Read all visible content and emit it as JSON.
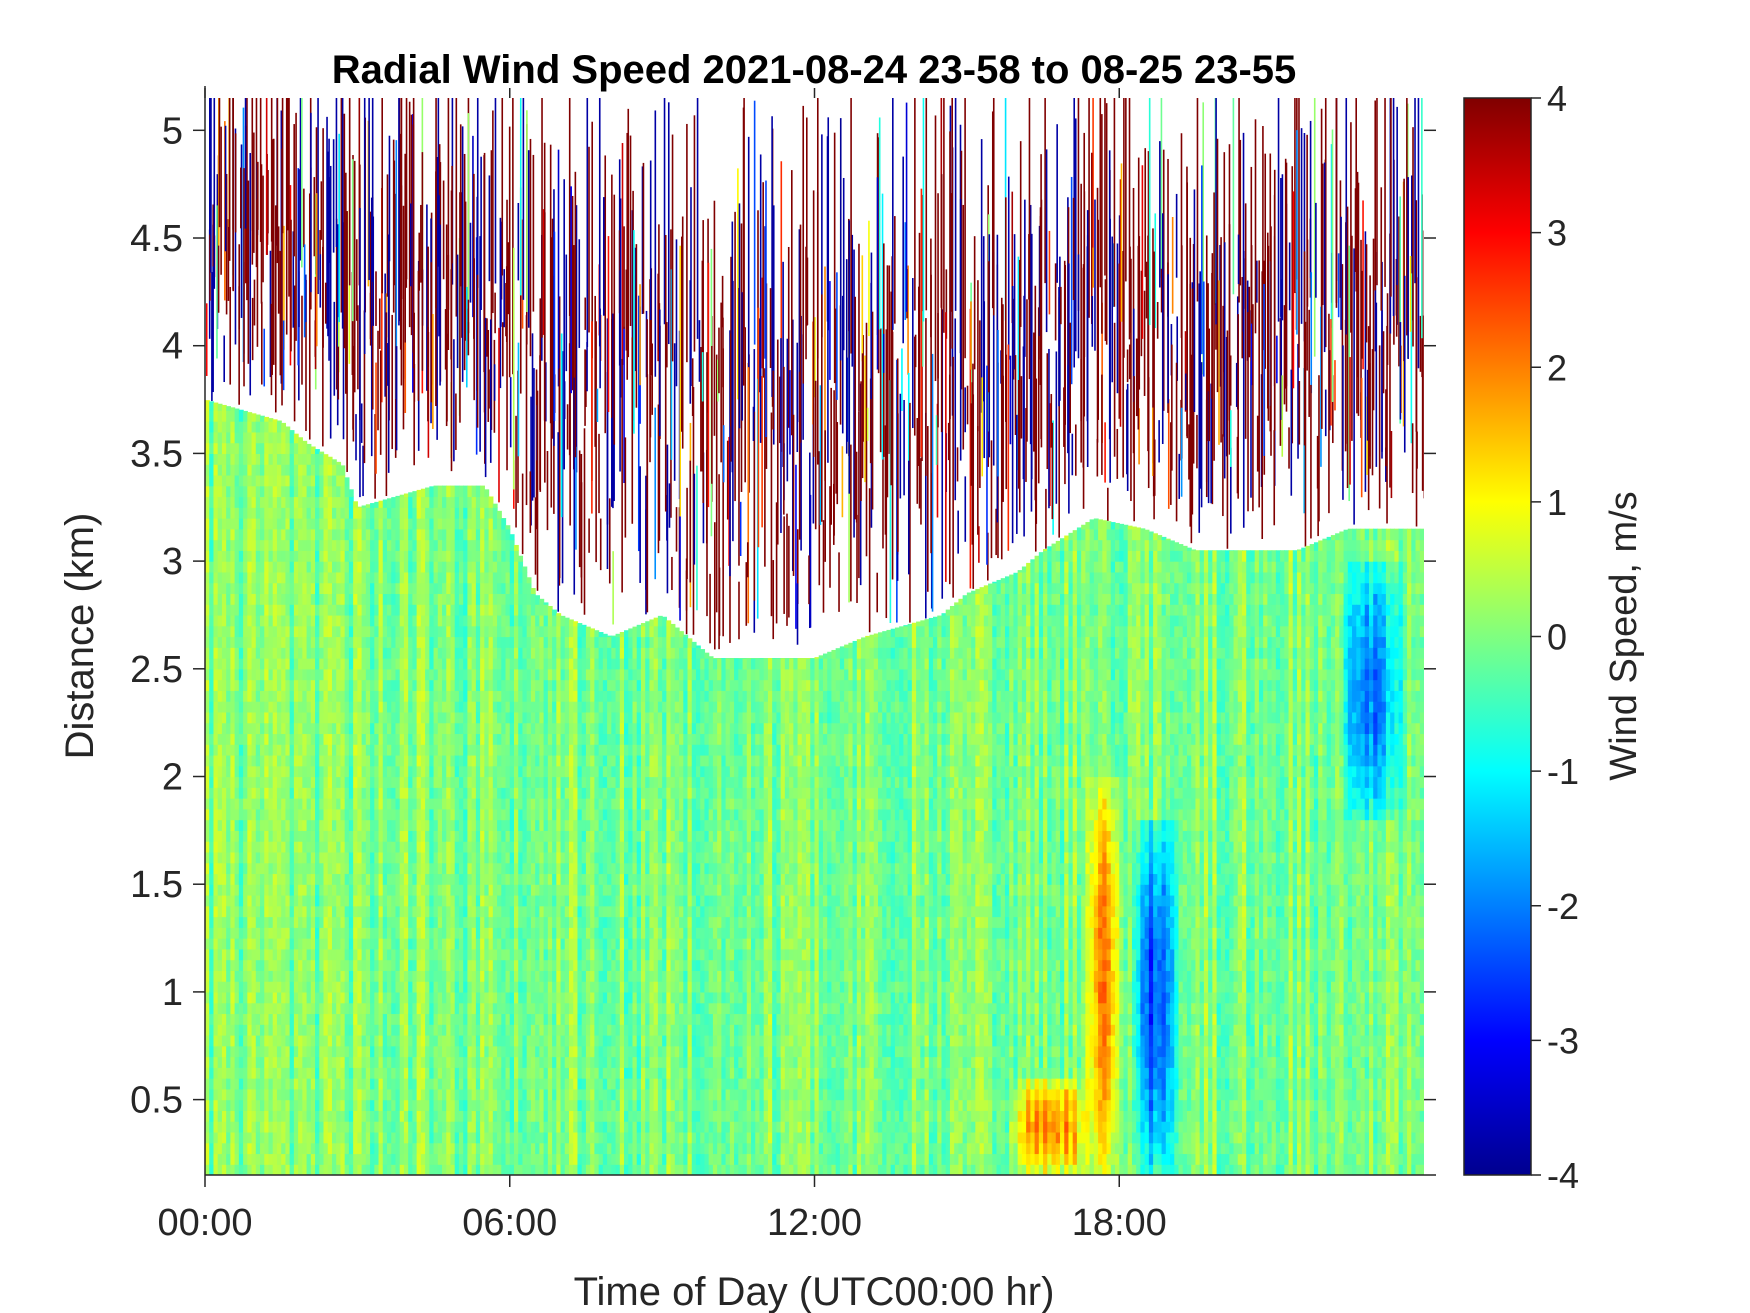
{
  "chart_data": {
    "type": "heatmap",
    "title": "Radial Wind Speed 2021-08-24 23-58 to 08-25 23-55",
    "xlabel": "Time of Day (UTC00:00 hr)",
    "ylabel": "Distance (km)",
    "x_unit": "hours of day (UTC)",
    "xlim": [
      0,
      24
    ],
    "ylim": [
      0.15,
      5.15
    ],
    "x_ticks": [
      {
        "value": 0,
        "label": "00:00"
      },
      {
        "value": 6,
        "label": "06:00"
      },
      {
        "value": 12,
        "label": "12:00"
      },
      {
        "value": 18,
        "label": "18:00"
      }
    ],
    "y_ticks": [
      {
        "value": 0.5,
        "label": "0.5"
      },
      {
        "value": 1,
        "label": "1"
      },
      {
        "value": 1.5,
        "label": "1.5"
      },
      {
        "value": 2,
        "label": "2"
      },
      {
        "value": 2.5,
        "label": "2.5"
      },
      {
        "value": 3,
        "label": "3"
      },
      {
        "value": 3.5,
        "label": "3.5"
      },
      {
        "value": 4,
        "label": "4"
      },
      {
        "value": 4.5,
        "label": "4.5"
      },
      {
        "value": 5,
        "label": "5"
      }
    ],
    "colorbar": {
      "label": "Wind Speed, m/s",
      "colormap": "jet",
      "range": [
        -4,
        4
      ],
      "ticks": [
        {
          "value": 4,
          "label": "4"
        },
        {
          "value": 3,
          "label": "3"
        },
        {
          "value": 2,
          "label": "2"
        },
        {
          "value": 1,
          "label": "1"
        },
        {
          "value": 0,
          "label": "0"
        },
        {
          "value": -1,
          "label": "-1"
        },
        {
          "value": -2,
          "label": "-2"
        },
        {
          "value": -3,
          "label": "-3"
        },
        {
          "value": -4,
          "label": "-4"
        }
      ]
    },
    "valid_data_top_km": [
      {
        "hour": 0.0,
        "km": 3.75
      },
      {
        "hour": 1.5,
        "km": 3.65
      },
      {
        "hour": 2.0,
        "km": 3.55
      },
      {
        "hour": 2.7,
        "km": 3.45
      },
      {
        "hour": 3.0,
        "km": 3.25
      },
      {
        "hour": 4.5,
        "km": 3.35
      },
      {
        "hour": 5.5,
        "km": 3.35
      },
      {
        "hour": 6.0,
        "km": 3.15
      },
      {
        "hour": 6.5,
        "km": 2.85
      },
      {
        "hour": 7.0,
        "km": 2.75
      },
      {
        "hour": 8.0,
        "km": 2.65
      },
      {
        "hour": 9.0,
        "km": 2.75
      },
      {
        "hour": 10.0,
        "km": 2.55
      },
      {
        "hour": 12.0,
        "km": 2.55
      },
      {
        "hour": 13.0,
        "km": 2.65
      },
      {
        "hour": 14.5,
        "km": 2.75
      },
      {
        "hour": 15.0,
        "km": 2.85
      },
      {
        "hour": 16.0,
        "km": 2.95
      },
      {
        "hour": 16.5,
        "km": 3.05
      },
      {
        "hour": 17.5,
        "km": 3.2
      },
      {
        "hour": 18.5,
        "km": 3.15
      },
      {
        "hour": 19.5,
        "km": 3.05
      },
      {
        "hour": 21.5,
        "km": 3.05
      },
      {
        "hour": 22.5,
        "km": 3.15
      },
      {
        "hour": 23.95,
        "km": 3.15
      }
    ],
    "background_wind_speed_range": [
      -0.6,
      0.6
    ],
    "features": [
      {
        "description": "positive wind speed band",
        "hour_range": [
          17.3,
          18.1
        ],
        "km_range": [
          0.15,
          2.0
        ],
        "peak_value": 2.0
      },
      {
        "description": "negative wind speed band",
        "hour_range": [
          18.2,
          19.2
        ],
        "km_range": [
          0.15,
          1.8
        ],
        "peak_value": -2.5
      },
      {
        "description": "positive wind speed near surface",
        "hour_range": [
          15.8,
          17.5
        ],
        "km_range": [
          0.15,
          0.6
        ],
        "peak_value": 2.0
      },
      {
        "description": "negative wind speed",
        "hour_range": [
          22.3,
          23.7
        ],
        "km_range": [
          1.8,
          3.0
        ],
        "peak_value": -2.0
      }
    ],
    "noise_region": "above valid data top: scattered values spanning -4 to 4",
    "grid": false
  }
}
